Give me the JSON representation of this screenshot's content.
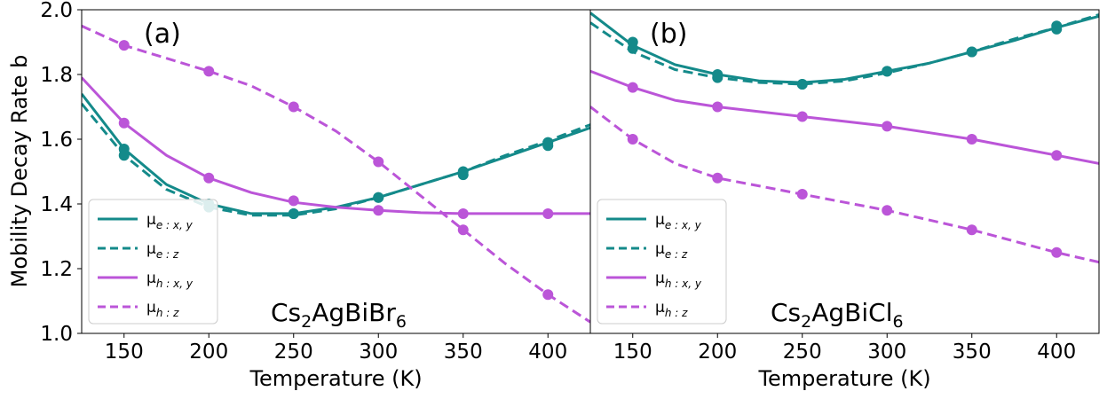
{
  "chart_data": [
    {
      "type": "line",
      "panel_label": "(a)",
      "compound": {
        "base1": "Cs",
        "sub1": "2",
        "base2": "AgBiBr",
        "sub2": "6"
      },
      "xlabel": "Temperature (K)",
      "ylabel": "Mobility Decay Rate b",
      "xlim": [
        125,
        425
      ],
      "ylim": [
        1.0,
        2.0
      ],
      "xticks": [
        150,
        200,
        250,
        300,
        350,
        400
      ],
      "yticks": [
        1.0,
        1.2,
        1.4,
        1.6,
        1.8,
        2.0
      ],
      "yticklabels": [
        "1.0",
        "1.2",
        "1.4",
        "1.6",
        "1.8",
        "2.0"
      ],
      "legend_position": "lower-left",
      "series": [
        {
          "name": "μe:x,y",
          "base": "μ",
          "sub": "e : x, y",
          "color": "#148a8a",
          "dash": "solid",
          "points": {
            "x": [
              150,
              200,
              250,
              300,
              350,
              400
            ],
            "y": [
              1.57,
              1.4,
              1.37,
              1.42,
              1.5,
              1.59
            ]
          },
          "curve": {
            "x": [
              125,
              150,
              175,
              200,
              225,
              250,
              275,
              300,
              325,
              350,
              375,
              400,
              425
            ],
            "y": [
              1.74,
              1.57,
              1.46,
              1.4,
              1.37,
              1.37,
              1.39,
              1.42,
              1.46,
              1.5,
              1.545,
              1.59,
              1.635
            ]
          }
        },
        {
          "name": "μe:z",
          "base": "μ",
          "sub": "e : z",
          "color": "#148a8a",
          "dash": "dashed",
          "points": {
            "x": [
              150,
              200,
              250,
              300,
              350,
              400
            ],
            "y": [
              1.55,
              1.39,
              1.37,
              1.42,
              1.49,
              1.58
            ]
          },
          "curve": {
            "x": [
              125,
              150,
              175,
              200,
              225,
              250,
              275,
              300,
              325,
              350,
              375,
              400,
              425
            ],
            "y": [
              1.71,
              1.55,
              1.445,
              1.39,
              1.365,
              1.365,
              1.385,
              1.42,
              1.46,
              1.5,
              1.55,
              1.595,
              1.645
            ]
          }
        },
        {
          "name": "μh:x,y",
          "base": "μ",
          "sub": "h : x, y",
          "color": "#bb55d8",
          "dash": "solid",
          "points": {
            "x": [
              150,
              200,
              250,
              300,
              350,
              400
            ],
            "y": [
              1.65,
              1.48,
              1.41,
              1.38,
              1.37,
              1.37
            ]
          },
          "curve": {
            "x": [
              125,
              150,
              175,
              200,
              225,
              250,
              275,
              300,
              325,
              350,
              375,
              400,
              425
            ],
            "y": [
              1.79,
              1.65,
              1.55,
              1.48,
              1.435,
              1.405,
              1.39,
              1.38,
              1.373,
              1.37,
              1.37,
              1.37,
              1.37
            ]
          }
        },
        {
          "name": "μh:z",
          "base": "μ",
          "sub": "h : z",
          "color": "#bb55d8",
          "dash": "dashed",
          "points": {
            "x": [
              150,
              200,
              250,
              300,
              350,
              400
            ],
            "y": [
              1.89,
              1.81,
              1.7,
              1.53,
              1.32,
              1.12
            ]
          },
          "curve": {
            "x": [
              125,
              150,
              175,
              200,
              225,
              250,
              275,
              300,
              325,
              350,
              375,
              400,
              425
            ],
            "y": [
              1.95,
              1.89,
              1.85,
              1.81,
              1.765,
              1.7,
              1.625,
              1.53,
              1.425,
              1.32,
              1.215,
              1.12,
              1.035
            ]
          }
        }
      ]
    },
    {
      "type": "line",
      "panel_label": "(b)",
      "compound": {
        "base1": "Cs",
        "sub1": "2",
        "base2": "AgBiCl",
        "sub2": "6"
      },
      "xlabel": "Temperature (K)",
      "ylabel": "",
      "xlim": [
        125,
        425
      ],
      "ylim": [
        1.0,
        2.0
      ],
      "xticks": [
        150,
        200,
        250,
        300,
        350,
        400
      ],
      "yticks": [],
      "yticklabels": [],
      "legend_position": "lower-left",
      "series": [
        {
          "name": "μe:x,y",
          "base": "μ",
          "sub": "e : x, y",
          "color": "#148a8a",
          "dash": "solid",
          "points": {
            "x": [
              150,
              200,
              250,
              300,
              350,
              400
            ],
            "y": [
              1.9,
              1.8,
              1.77,
              1.81,
              1.87,
              1.95
            ]
          },
          "curve": {
            "x": [
              125,
              150,
              175,
              200,
              225,
              250,
              275,
              300,
              325,
              350,
              375,
              400,
              425
            ],
            "y": [
              1.99,
              1.89,
              1.83,
              1.8,
              1.78,
              1.775,
              1.785,
              1.81,
              1.835,
              1.87,
              1.905,
              1.945,
              1.98
            ]
          }
        },
        {
          "name": "μe:z",
          "base": "μ",
          "sub": "e : z",
          "color": "#148a8a",
          "dash": "dashed",
          "points": {
            "x": [
              150,
              200,
              250,
              300,
              350,
              400
            ],
            "y": [
              1.88,
              1.79,
              1.77,
              1.81,
              1.87,
              1.94
            ]
          },
          "curve": {
            "x": [
              125,
              150,
              175,
              200,
              225,
              250,
              275,
              300,
              325,
              350,
              375,
              400,
              425
            ],
            "y": [
              1.96,
              1.87,
              1.815,
              1.79,
              1.775,
              1.77,
              1.78,
              1.805,
              1.835,
              1.87,
              1.91,
              1.945,
              1.985
            ]
          }
        },
        {
          "name": "μh:x,y",
          "base": "μ",
          "sub": "h : x, y",
          "color": "#bb55d8",
          "dash": "solid",
          "points": {
            "x": [
              150,
              200,
              250,
              300,
              350,
              400
            ],
            "y": [
              1.76,
              1.7,
              1.67,
              1.64,
              1.6,
              1.55
            ]
          },
          "curve": {
            "x": [
              125,
              150,
              175,
              200,
              225,
              250,
              275,
              300,
              325,
              350,
              375,
              400,
              425
            ],
            "y": [
              1.81,
              1.76,
              1.72,
              1.7,
              1.685,
              1.67,
              1.655,
              1.64,
              1.62,
              1.6,
              1.575,
              1.55,
              1.525
            ]
          }
        },
        {
          "name": "μh:z",
          "base": "μ",
          "sub": "h : z",
          "color": "#bb55d8",
          "dash": "dashed",
          "points": {
            "x": [
              150,
              200,
              250,
              300,
              350,
              400
            ],
            "y": [
              1.6,
              1.48,
              1.43,
              1.38,
              1.32,
              1.25
            ]
          },
          "curve": {
            "x": [
              125,
              150,
              175,
              200,
              225,
              250,
              275,
              300,
              325,
              350,
              375,
              400,
              425
            ],
            "y": [
              1.7,
              1.6,
              1.525,
              1.48,
              1.455,
              1.43,
              1.405,
              1.38,
              1.35,
              1.32,
              1.285,
              1.25,
              1.22
            ]
          }
        }
      ]
    }
  ]
}
